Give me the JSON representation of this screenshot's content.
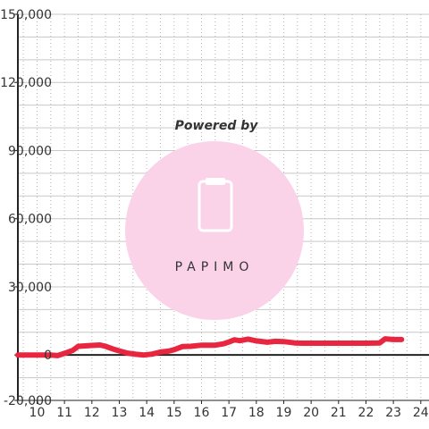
{
  "watermark": {
    "text": "Powered by",
    "brand": "PAPIMO",
    "color": "#fbd3e9"
  },
  "chart_data": {
    "type": "line",
    "title": "",
    "xlabel": "",
    "ylabel": "",
    "xlim": [
      9.3,
      24.3
    ],
    "ylim": [
      -20000,
      150000
    ],
    "x_ticks": [
      10,
      11,
      12,
      13,
      14,
      15,
      16,
      17,
      18,
      19,
      20,
      21,
      22,
      23,
      24
    ],
    "x_tick_labels": [
      "10",
      "11",
      "12",
      "13",
      "14",
      "15",
      "16",
      "17",
      "18",
      "19",
      "20",
      "21",
      "22",
      "23",
      "24"
    ],
    "y_ticks": [
      -20000,
      0,
      30000,
      60000,
      90000,
      120000,
      150000
    ],
    "y_tick_labels": [
      "-20,000",
      "0",
      "30,000",
      "60,000",
      "90,000",
      "120,000",
      "150,000"
    ],
    "grid": true,
    "series_color": "#e8263f",
    "series": [
      {
        "x": [
          9.3,
          10.0,
          10.5,
          10.75,
          11.0,
          11.3,
          11.5,
          12.0,
          12.3,
          12.5,
          12.8,
          13.0,
          13.3,
          13.6,
          13.9,
          14.2,
          14.5,
          14.8,
          15.0,
          15.3,
          15.6,
          16.0,
          16.5,
          16.8,
          17.0,
          17.2,
          17.4,
          17.7,
          18.0,
          18.4,
          18.7,
          19.0,
          19.4,
          19.7,
          20.0,
          21.0,
          22.0,
          22.5,
          22.7,
          23.0,
          23.3
        ],
        "y": [
          0,
          0,
          0,
          -300,
          700,
          2000,
          3800,
          4200,
          4400,
          3800,
          2500,
          1800,
          800,
          300,
          0,
          400,
          1300,
          1700,
          2300,
          3700,
          3800,
          4300,
          4300,
          4900,
          5700,
          6700,
          6300,
          7000,
          6200,
          5600,
          6000,
          5900,
          5300,
          5200,
          5200,
          5200,
          5200,
          5300,
          7100,
          6800,
          6800
        ]
      }
    ]
  }
}
